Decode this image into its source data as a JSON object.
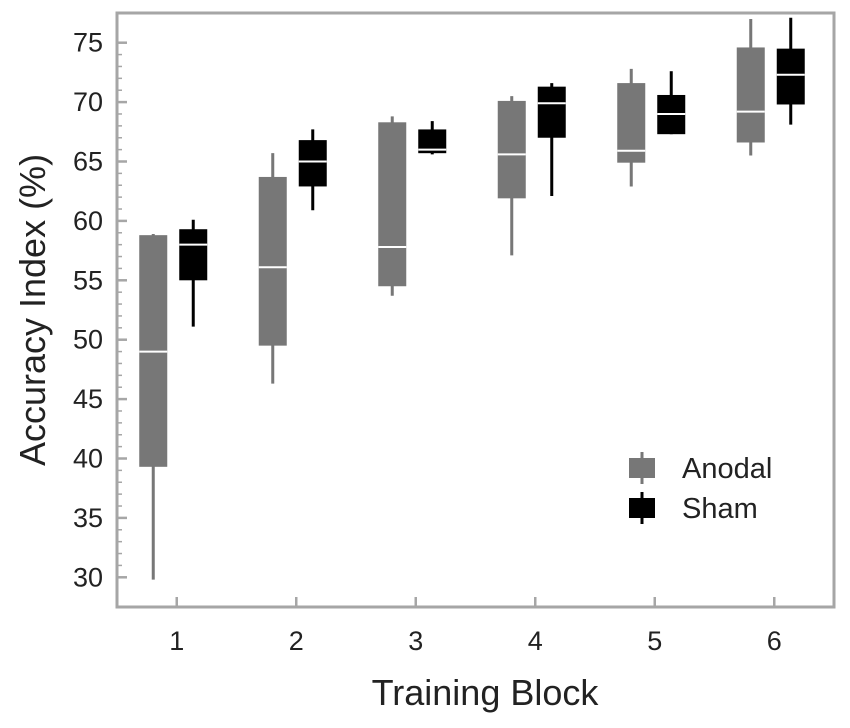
{
  "chart_data": {
    "type": "box",
    "xlabel": "Training Block",
    "ylabel": "Accuracy Index (%)",
    "categories": [
      "1",
      "2",
      "3",
      "4",
      "5",
      "6"
    ],
    "ylim": [
      27.5,
      77.5
    ],
    "yticks": [
      30,
      35,
      40,
      45,
      50,
      55,
      60,
      65,
      70,
      75
    ],
    "grid": false,
    "legend_position": "lower-right",
    "series": [
      {
        "name": "Anodal",
        "color": "#777777",
        "median_color": "#ffffff",
        "boxes": [
          {
            "min": 29.8,
            "q1": 39.3,
            "median": 49.0,
            "q3": 58.8,
            "max": 58.9
          },
          {
            "min": 46.3,
            "q1": 49.5,
            "median": 56.1,
            "q3": 63.7,
            "max": 65.7
          },
          {
            "min": 53.7,
            "q1": 54.5,
            "median": 57.8,
            "q3": 68.3,
            "max": 68.8
          },
          {
            "min": 57.1,
            "q1": 61.9,
            "median": 65.6,
            "q3": 70.1,
            "max": 70.5
          },
          {
            "min": 62.9,
            "q1": 64.9,
            "median": 65.9,
            "q3": 71.6,
            "max": 72.8
          },
          {
            "min": 65.5,
            "q1": 66.6,
            "median": 69.2,
            "q3": 74.6,
            "max": 77.0
          }
        ]
      },
      {
        "name": "Sham",
        "color": "#000000",
        "median_color": "#ffffff",
        "boxes": [
          {
            "min": 51.1,
            "q1": 55.0,
            "median": 58.0,
            "q3": 59.3,
            "max": 60.1
          },
          {
            "min": 60.9,
            "q1": 62.9,
            "median": 65.0,
            "q3": 66.8,
            "max": 67.7
          },
          {
            "min": 65.6,
            "q1": 65.7,
            "median": 66.0,
            "q3": 67.7,
            "max": 68.4
          },
          {
            "min": 62.1,
            "q1": 67.0,
            "median": 69.9,
            "q3": 71.3,
            "max": 71.6
          },
          {
            "min": 67.3,
            "q1": 67.3,
            "median": 69.0,
            "q3": 70.6,
            "max": 72.6
          },
          {
            "min": 68.1,
            "q1": 69.8,
            "median": 72.3,
            "q3": 74.5,
            "max": 77.1
          }
        ]
      }
    ]
  }
}
